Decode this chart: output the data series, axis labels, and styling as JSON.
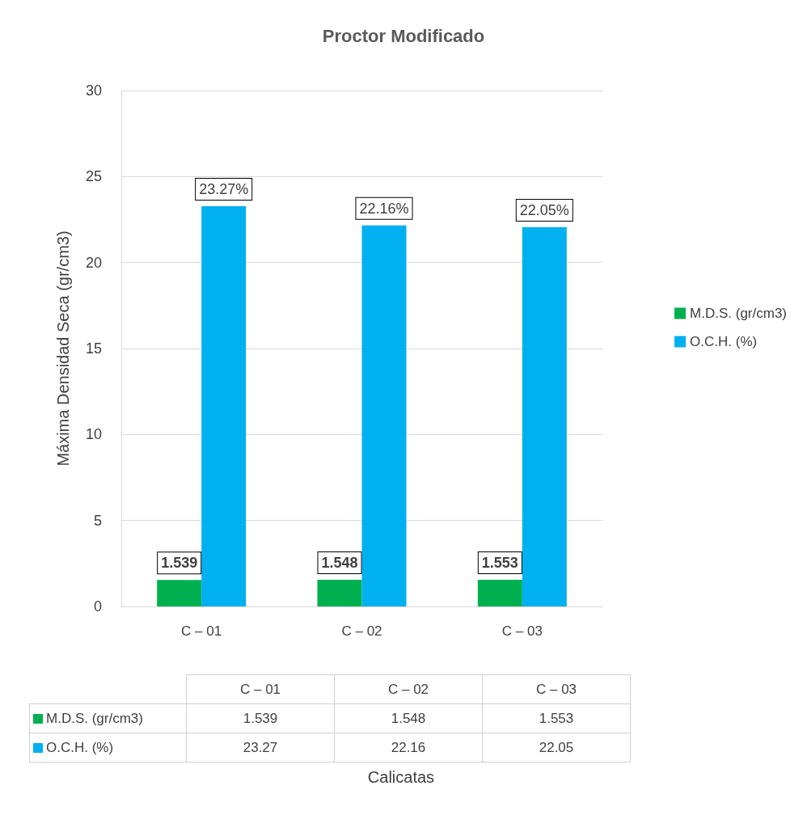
{
  "chart_data": {
    "type": "bar",
    "title": "Proctor Modificado",
    "annotations": [
      "1.539",
      "1.548",
      "1.553",
      "23.27",
      "22.16",
      "22.05",
      "Calicatas"
    ],
    "ylabel": "Máxima Densidad Seca (gr/cm3)",
    "categories": [
      "C – 01",
      "C – 02",
      "C – 03"
    ],
    "series": [
      {
        "name": "M.D.S. (gr/cm3)",
        "color": "#00b050",
        "values": [
          1.539,
          1.548,
          1.553
        ],
        "value_labels": [
          "1.539",
          "1.548",
          "1.553"
        ]
      },
      {
        "name": "O.C.H. (%)",
        "color": "#00b0f0",
        "values": [
          23.27,
          22.16,
          22.05
        ],
        "value_labels": [
          "23.27%",
          "22.16%",
          "22.05%"
        ]
      }
    ],
    "ylim": [
      0,
      30
    ],
    "yticks": [
      0,
      5,
      10,
      15,
      20,
      25,
      30
    ],
    "grid": "y",
    "legend": "right"
  }
}
